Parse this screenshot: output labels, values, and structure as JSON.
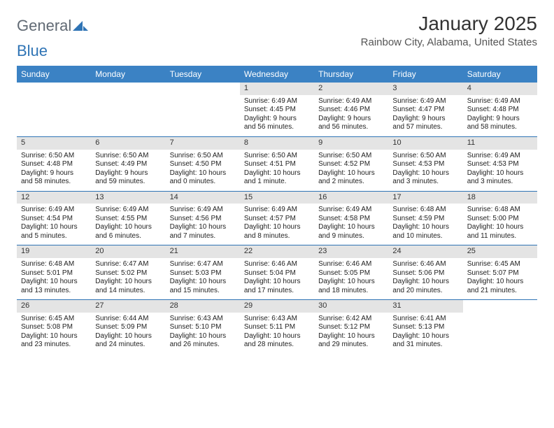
{
  "logo": {
    "text1": "General",
    "text2": "Blue"
  },
  "title": "January 2025",
  "location": "Rainbow City, Alabama, United States",
  "colors": {
    "header_bg": "#3b82c4",
    "header_text": "#ffffff",
    "daynum_bg": "#e4e4e4",
    "rule": "#2f74b5",
    "logo_gray": "#616a74",
    "logo_blue": "#2f74b5"
  },
  "day_names": [
    "Sunday",
    "Monday",
    "Tuesday",
    "Wednesday",
    "Thursday",
    "Friday",
    "Saturday"
  ],
  "weeks": [
    [
      {
        "n": "",
        "sunrise": "",
        "sunset": "",
        "day1": "",
        "day2": ""
      },
      {
        "n": "",
        "sunrise": "",
        "sunset": "",
        "day1": "",
        "day2": ""
      },
      {
        "n": "",
        "sunrise": "",
        "sunset": "",
        "day1": "",
        "day2": ""
      },
      {
        "n": "1",
        "sunrise": "Sunrise: 6:49 AM",
        "sunset": "Sunset: 4:45 PM",
        "day1": "Daylight: 9 hours",
        "day2": "and 56 minutes."
      },
      {
        "n": "2",
        "sunrise": "Sunrise: 6:49 AM",
        "sunset": "Sunset: 4:46 PM",
        "day1": "Daylight: 9 hours",
        "day2": "and 56 minutes."
      },
      {
        "n": "3",
        "sunrise": "Sunrise: 6:49 AM",
        "sunset": "Sunset: 4:47 PM",
        "day1": "Daylight: 9 hours",
        "day2": "and 57 minutes."
      },
      {
        "n": "4",
        "sunrise": "Sunrise: 6:49 AM",
        "sunset": "Sunset: 4:48 PM",
        "day1": "Daylight: 9 hours",
        "day2": "and 58 minutes."
      }
    ],
    [
      {
        "n": "5",
        "sunrise": "Sunrise: 6:50 AM",
        "sunset": "Sunset: 4:48 PM",
        "day1": "Daylight: 9 hours",
        "day2": "and 58 minutes."
      },
      {
        "n": "6",
        "sunrise": "Sunrise: 6:50 AM",
        "sunset": "Sunset: 4:49 PM",
        "day1": "Daylight: 9 hours",
        "day2": "and 59 minutes."
      },
      {
        "n": "7",
        "sunrise": "Sunrise: 6:50 AM",
        "sunset": "Sunset: 4:50 PM",
        "day1": "Daylight: 10 hours",
        "day2": "and 0 minutes."
      },
      {
        "n": "8",
        "sunrise": "Sunrise: 6:50 AM",
        "sunset": "Sunset: 4:51 PM",
        "day1": "Daylight: 10 hours",
        "day2": "and 1 minute."
      },
      {
        "n": "9",
        "sunrise": "Sunrise: 6:50 AM",
        "sunset": "Sunset: 4:52 PM",
        "day1": "Daylight: 10 hours",
        "day2": "and 2 minutes."
      },
      {
        "n": "10",
        "sunrise": "Sunrise: 6:50 AM",
        "sunset": "Sunset: 4:53 PM",
        "day1": "Daylight: 10 hours",
        "day2": "and 3 minutes."
      },
      {
        "n": "11",
        "sunrise": "Sunrise: 6:49 AM",
        "sunset": "Sunset: 4:53 PM",
        "day1": "Daylight: 10 hours",
        "day2": "and 3 minutes."
      }
    ],
    [
      {
        "n": "12",
        "sunrise": "Sunrise: 6:49 AM",
        "sunset": "Sunset: 4:54 PM",
        "day1": "Daylight: 10 hours",
        "day2": "and 5 minutes."
      },
      {
        "n": "13",
        "sunrise": "Sunrise: 6:49 AM",
        "sunset": "Sunset: 4:55 PM",
        "day1": "Daylight: 10 hours",
        "day2": "and 6 minutes."
      },
      {
        "n": "14",
        "sunrise": "Sunrise: 6:49 AM",
        "sunset": "Sunset: 4:56 PM",
        "day1": "Daylight: 10 hours",
        "day2": "and 7 minutes."
      },
      {
        "n": "15",
        "sunrise": "Sunrise: 6:49 AM",
        "sunset": "Sunset: 4:57 PM",
        "day1": "Daylight: 10 hours",
        "day2": "and 8 minutes."
      },
      {
        "n": "16",
        "sunrise": "Sunrise: 6:49 AM",
        "sunset": "Sunset: 4:58 PM",
        "day1": "Daylight: 10 hours",
        "day2": "and 9 minutes."
      },
      {
        "n": "17",
        "sunrise": "Sunrise: 6:48 AM",
        "sunset": "Sunset: 4:59 PM",
        "day1": "Daylight: 10 hours",
        "day2": "and 10 minutes."
      },
      {
        "n": "18",
        "sunrise": "Sunrise: 6:48 AM",
        "sunset": "Sunset: 5:00 PM",
        "day1": "Daylight: 10 hours",
        "day2": "and 11 minutes."
      }
    ],
    [
      {
        "n": "19",
        "sunrise": "Sunrise: 6:48 AM",
        "sunset": "Sunset: 5:01 PM",
        "day1": "Daylight: 10 hours",
        "day2": "and 13 minutes."
      },
      {
        "n": "20",
        "sunrise": "Sunrise: 6:47 AM",
        "sunset": "Sunset: 5:02 PM",
        "day1": "Daylight: 10 hours",
        "day2": "and 14 minutes."
      },
      {
        "n": "21",
        "sunrise": "Sunrise: 6:47 AM",
        "sunset": "Sunset: 5:03 PM",
        "day1": "Daylight: 10 hours",
        "day2": "and 15 minutes."
      },
      {
        "n": "22",
        "sunrise": "Sunrise: 6:46 AM",
        "sunset": "Sunset: 5:04 PM",
        "day1": "Daylight: 10 hours",
        "day2": "and 17 minutes."
      },
      {
        "n": "23",
        "sunrise": "Sunrise: 6:46 AM",
        "sunset": "Sunset: 5:05 PM",
        "day1": "Daylight: 10 hours",
        "day2": "and 18 minutes."
      },
      {
        "n": "24",
        "sunrise": "Sunrise: 6:46 AM",
        "sunset": "Sunset: 5:06 PM",
        "day1": "Daylight: 10 hours",
        "day2": "and 20 minutes."
      },
      {
        "n": "25",
        "sunrise": "Sunrise: 6:45 AM",
        "sunset": "Sunset: 5:07 PM",
        "day1": "Daylight: 10 hours",
        "day2": "and 21 minutes."
      }
    ],
    [
      {
        "n": "26",
        "sunrise": "Sunrise: 6:45 AM",
        "sunset": "Sunset: 5:08 PM",
        "day1": "Daylight: 10 hours",
        "day2": "and 23 minutes."
      },
      {
        "n": "27",
        "sunrise": "Sunrise: 6:44 AM",
        "sunset": "Sunset: 5:09 PM",
        "day1": "Daylight: 10 hours",
        "day2": "and 24 minutes."
      },
      {
        "n": "28",
        "sunrise": "Sunrise: 6:43 AM",
        "sunset": "Sunset: 5:10 PM",
        "day1": "Daylight: 10 hours",
        "day2": "and 26 minutes."
      },
      {
        "n": "29",
        "sunrise": "Sunrise: 6:43 AM",
        "sunset": "Sunset: 5:11 PM",
        "day1": "Daylight: 10 hours",
        "day2": "and 28 minutes."
      },
      {
        "n": "30",
        "sunrise": "Sunrise: 6:42 AM",
        "sunset": "Sunset: 5:12 PM",
        "day1": "Daylight: 10 hours",
        "day2": "and 29 minutes."
      },
      {
        "n": "31",
        "sunrise": "Sunrise: 6:41 AM",
        "sunset": "Sunset: 5:13 PM",
        "day1": "Daylight: 10 hours",
        "day2": "and 31 minutes."
      },
      {
        "n": "",
        "sunrise": "",
        "sunset": "",
        "day1": "",
        "day2": ""
      }
    ]
  ]
}
